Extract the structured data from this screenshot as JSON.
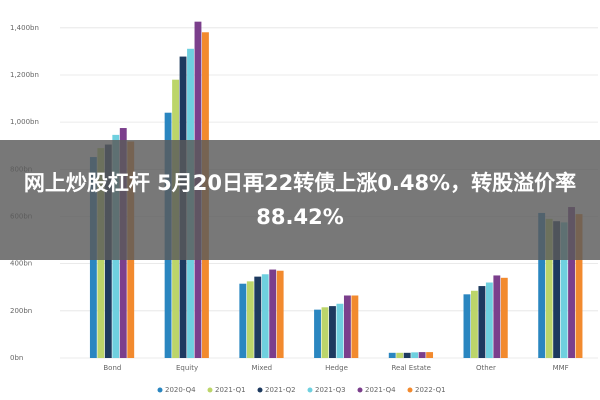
{
  "chart_data": {
    "type": "bar",
    "categories": [
      "Bond",
      "Equity",
      "Mixed",
      "Hedge",
      "Real Estate",
      "Other",
      "MMF"
    ],
    "series": [
      {
        "name": "2020-Q4",
        "color": "#2a86c0",
        "values": [
          852,
          1040,
          315,
          205,
          22,
          270,
          615
        ]
      },
      {
        "name": "2021-Q1",
        "color": "#bcd56a",
        "values": [
          890,
          1180,
          325,
          215,
          22,
          285,
          590
        ]
      },
      {
        "name": "2021-Q2",
        "color": "#1d3a5f",
        "values": [
          905,
          1278,
          345,
          220,
          22,
          305,
          580
        ]
      },
      {
        "name": "2021-Q3",
        "color": "#6fd0df",
        "values": [
          946,
          1311,
          355,
          230,
          24,
          320,
          575
        ]
      },
      {
        "name": "2021-Q4",
        "color": "#7b3f8c",
        "values": [
          975,
          1426,
          375,
          265,
          25,
          350,
          640
        ]
      },
      {
        "name": "2022-Q1",
        "color": "#f28a2e",
        "values": [
          918,
          1381,
          370,
          265,
          25,
          340,
          610
        ]
      }
    ],
    "ylim": [
      0,
      1450
    ],
    "yticks": [
      {
        "value": 0,
        "label": "0bn"
      },
      {
        "value": 200,
        "label": "200bn"
      },
      {
        "value": 400,
        "label": "400bn"
      },
      {
        "value": 600,
        "label": "600bn"
      },
      {
        "value": 800,
        "label": "800bn"
      },
      {
        "value": 1000,
        "label": "1,000bn"
      },
      {
        "value": 1200,
        "label": "1,200bn"
      },
      {
        "value": 1400,
        "label": "1,400bn"
      }
    ],
    "grid": true,
    "legend": "bottom"
  },
  "overlay_text": "网上炒股杠杆 5月20日再22转债上涨0.48%，转股溢价率88.42%"
}
